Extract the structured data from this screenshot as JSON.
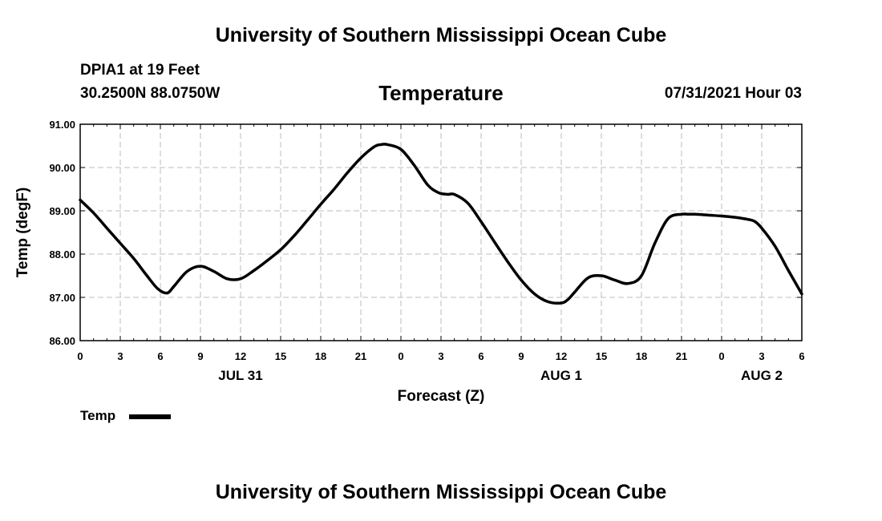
{
  "header": {
    "top_title": "University of Southern Mississippi Ocean Cube",
    "station": "DPIA1 at 19 Feet",
    "coords": "30.2500N  88.0750W",
    "datetime": "07/31/2021 Hour 03",
    "bottom_title": "University of Southern Mississippi Ocean Cube"
  },
  "chart_data": {
    "type": "line",
    "title": "Temperature",
    "xlabel": "Forecast (Z)",
    "ylabel": "Temp (degF)",
    "ylim": [
      86.0,
      91.0
    ],
    "xlim": [
      0,
      54
    ],
    "x_unit": "hours since 07/31 00Z",
    "grid": true,
    "y_ticks": [
      86.0,
      87.0,
      88.0,
      89.0,
      90.0,
      91.0
    ],
    "y_tick_labels": [
      "86.00",
      "87.00",
      "88.00",
      "89.00",
      "90.00",
      "91.00"
    ],
    "x_ticks": [
      0,
      3,
      6,
      9,
      12,
      15,
      18,
      21,
      24,
      27,
      30,
      33,
      36,
      39,
      42,
      45,
      48,
      51,
      54
    ],
    "x_tick_labels": [
      "0",
      "3",
      "6",
      "9",
      "12",
      "15",
      "18",
      "21",
      "0",
      "3",
      "6",
      "9",
      "12",
      "15",
      "18",
      "21",
      "0",
      "3",
      "6"
    ],
    "date_labels": [
      {
        "x": 12,
        "label": "JUL 31"
      },
      {
        "x": 36,
        "label": "AUG 1"
      },
      {
        "x": 51,
        "label": "AUG 2"
      }
    ],
    "legend": {
      "position": "bottom-left",
      "entries": [
        "Temp"
      ]
    },
    "series": [
      {
        "name": "Temp",
        "color": "#000000",
        "x": [
          0,
          1,
          2,
          3,
          4,
          5,
          5.8,
          6.5,
          7,
          8,
          9,
          10,
          11,
          12,
          13,
          14,
          15,
          16,
          17,
          18,
          19,
          20,
          21,
          22,
          22.5,
          23,
          24,
          25,
          26,
          26.8,
          27.5,
          28,
          29,
          30,
          31,
          32,
          33,
          34,
          35,
          36,
          36.5,
          37,
          38,
          39,
          40,
          41,
          42,
          43,
          44,
          45,
          45.5,
          46,
          47,
          48,
          49,
          50,
          50.5,
          51,
          52,
          53,
          54
        ],
        "y": [
          89.25,
          88.95,
          88.6,
          88.25,
          87.9,
          87.5,
          87.2,
          87.1,
          87.25,
          87.6,
          87.72,
          87.6,
          87.43,
          87.43,
          87.62,
          87.85,
          88.1,
          88.42,
          88.78,
          89.15,
          89.5,
          89.88,
          90.22,
          90.48,
          90.53,
          90.53,
          90.42,
          90.05,
          89.6,
          89.42,
          89.38,
          89.38,
          89.18,
          88.75,
          88.28,
          87.82,
          87.4,
          87.08,
          86.9,
          86.87,
          86.95,
          87.12,
          87.45,
          87.5,
          87.4,
          87.32,
          87.5,
          88.25,
          88.82,
          88.92,
          88.92,
          88.92,
          88.9,
          88.88,
          88.85,
          88.8,
          88.75,
          88.6,
          88.18,
          87.62,
          87.08
        ]
      }
    ]
  }
}
